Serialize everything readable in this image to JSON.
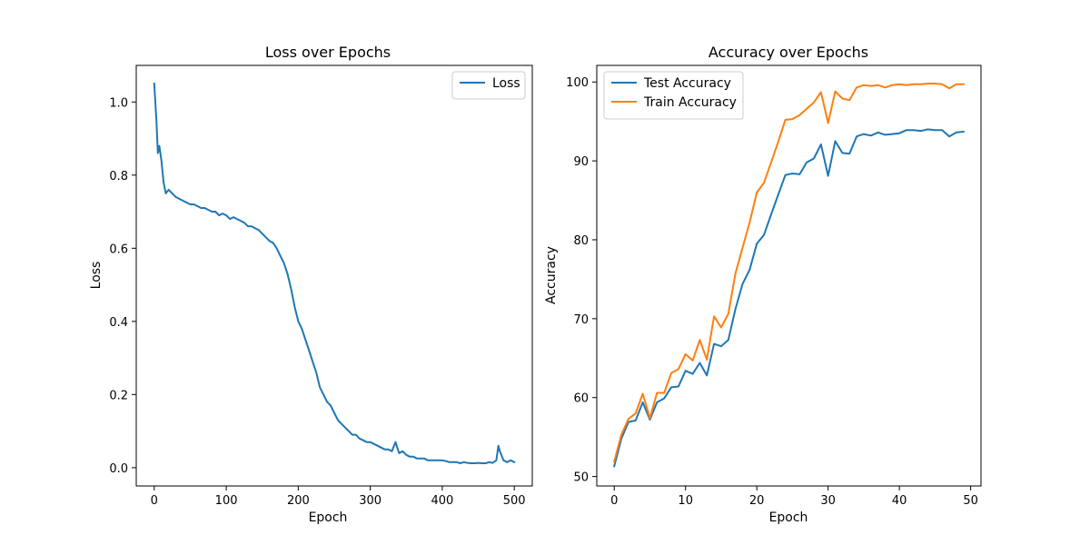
{
  "chart_data": [
    {
      "type": "line",
      "title": "Loss over Epochs",
      "xlabel": "Epoch",
      "ylabel": "Loss",
      "xlim": [
        -25,
        525
      ],
      "ylim": [
        -0.05,
        1.1
      ],
      "xticks": [
        0,
        100,
        200,
        300,
        400,
        500
      ],
      "yticks": [
        0.0,
        0.2,
        0.4,
        0.6,
        0.8,
        1.0
      ],
      "ytick_decimals": 1,
      "grid": false,
      "legend": "upper right",
      "series": [
        {
          "name": "Loss",
          "color": "#1f77b4",
          "x": [
            0,
            3,
            5,
            7,
            10,
            13,
            16,
            20,
            25,
            30,
            35,
            40,
            45,
            50,
            55,
            60,
            65,
            70,
            75,
            80,
            85,
            90,
            95,
            100,
            105,
            110,
            115,
            120,
            125,
            130,
            135,
            140,
            145,
            150,
            155,
            160,
            165,
            170,
            175,
            180,
            185,
            190,
            195,
            200,
            205,
            210,
            215,
            220,
            225,
            230,
            235,
            240,
            245,
            250,
            255,
            260,
            265,
            270,
            275,
            280,
            285,
            290,
            295,
            300,
            305,
            310,
            315,
            320,
            325,
            330,
            335,
            340,
            345,
            350,
            355,
            360,
            365,
            370,
            375,
            380,
            385,
            390,
            395,
            400,
            405,
            410,
            415,
            420,
            425,
            430,
            435,
            440,
            445,
            450,
            455,
            460,
            465,
            470,
            475,
            478,
            480,
            485,
            490,
            495,
            500
          ],
          "y": [
            1.05,
            0.95,
            0.86,
            0.88,
            0.84,
            0.78,
            0.75,
            0.76,
            0.75,
            0.74,
            0.735,
            0.73,
            0.725,
            0.72,
            0.72,
            0.715,
            0.71,
            0.71,
            0.705,
            0.7,
            0.7,
            0.69,
            0.695,
            0.69,
            0.68,
            0.685,
            0.68,
            0.675,
            0.67,
            0.66,
            0.66,
            0.655,
            0.65,
            0.64,
            0.63,
            0.62,
            0.615,
            0.6,
            0.58,
            0.56,
            0.53,
            0.49,
            0.44,
            0.4,
            0.38,
            0.35,
            0.32,
            0.29,
            0.26,
            0.22,
            0.2,
            0.18,
            0.17,
            0.15,
            0.13,
            0.12,
            0.11,
            0.1,
            0.09,
            0.09,
            0.08,
            0.075,
            0.07,
            0.07,
            0.065,
            0.06,
            0.055,
            0.05,
            0.05,
            0.045,
            0.07,
            0.04,
            0.045,
            0.035,
            0.03,
            0.03,
            0.025,
            0.025,
            0.025,
            0.02,
            0.02,
            0.02,
            0.02,
            0.02,
            0.018,
            0.015,
            0.015,
            0.015,
            0.012,
            0.015,
            0.013,
            0.012,
            0.012,
            0.013,
            0.012,
            0.012,
            0.015,
            0.013,
            0.02,
            0.06,
            0.045,
            0.02,
            0.015,
            0.02,
            0.015
          ]
        }
      ]
    },
    {
      "type": "line",
      "title": "Accuracy over Epochs",
      "xlabel": "Epoch",
      "ylabel": "Accuracy",
      "xlim": [
        -2.45,
        51.45
      ],
      "ylim": [
        48.8,
        102.1
      ],
      "xticks": [
        0,
        10,
        20,
        30,
        40,
        50
      ],
      "yticks": [
        50,
        60,
        70,
        80,
        90,
        100
      ],
      "ytick_decimals": 0,
      "grid": false,
      "legend": "upper left",
      "series": [
        {
          "name": "Test Accuracy",
          "color": "#1f77b4",
          "x": [
            0,
            1,
            2,
            3,
            4,
            5,
            6,
            7,
            8,
            9,
            10,
            11,
            12,
            13,
            14,
            15,
            16,
            17,
            18,
            19,
            20,
            21,
            22,
            23,
            24,
            25,
            26,
            27,
            28,
            29,
            30,
            31,
            32,
            33,
            34,
            35,
            36,
            37,
            38,
            39,
            40,
            41,
            42,
            43,
            44,
            45,
            46,
            47,
            48,
            49
          ],
          "y": [
            51.3,
            54.8,
            56.9,
            57.1,
            59.4,
            57.2,
            59.4,
            59.9,
            61.3,
            61.4,
            63.4,
            63.0,
            64.4,
            62.8,
            66.8,
            66.5,
            67.3,
            71.2,
            74.4,
            76.2,
            79.5,
            80.6,
            83.2,
            85.7,
            88.2,
            88.4,
            88.3,
            89.8,
            90.3,
            92.1,
            88.1,
            92.5,
            91.0,
            90.9,
            93.1,
            93.4,
            93.2,
            93.6,
            93.3,
            93.4,
            93.5,
            93.9,
            93.9,
            93.8,
            94.0,
            93.9,
            93.9,
            93.1,
            93.6,
            93.7
          ]
        },
        {
          "name": "Train Accuracy",
          "color": "#ff7f0e",
          "x": [
            0,
            1,
            2,
            3,
            4,
            5,
            6,
            7,
            8,
            9,
            10,
            11,
            12,
            13,
            14,
            15,
            16,
            17,
            18,
            19,
            20,
            21,
            22,
            23,
            24,
            25,
            26,
            27,
            28,
            29,
            30,
            31,
            32,
            33,
            34,
            35,
            36,
            37,
            38,
            39,
            40,
            41,
            42,
            43,
            44,
            45,
            46,
            47,
            48,
            49
          ],
          "y": [
            51.9,
            55.3,
            57.3,
            58.0,
            60.5,
            57.4,
            60.6,
            60.6,
            63.1,
            63.6,
            65.5,
            64.7,
            67.3,
            64.8,
            70.3,
            68.9,
            70.6,
            75.7,
            79.0,
            82.2,
            86.0,
            87.2,
            89.8,
            92.4,
            95.2,
            95.3,
            95.8,
            96.6,
            97.4,
            98.7,
            94.8,
            98.8,
            97.9,
            97.7,
            99.3,
            99.6,
            99.5,
            99.6,
            99.3,
            99.6,
            99.7,
            99.6,
            99.7,
            99.7,
            99.8,
            99.8,
            99.7,
            99.2,
            99.7,
            99.7
          ]
        }
      ]
    }
  ]
}
